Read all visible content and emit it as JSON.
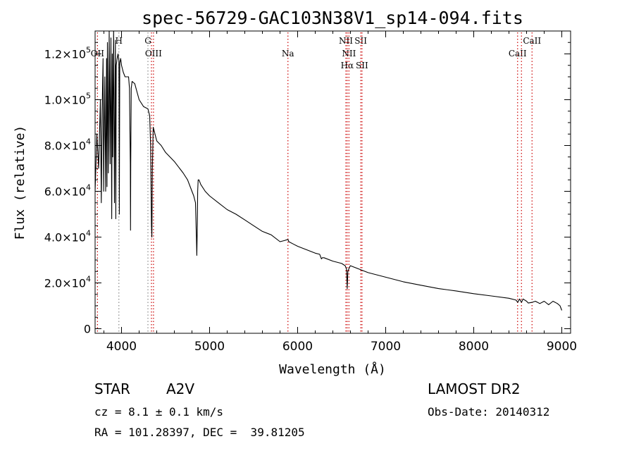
{
  "chart_data": {
    "type": "line",
    "title": "spec-56729-GAC103N38V1_sp14-094.fits",
    "xlabel": "Wavelength (Å)",
    "ylabel": "Flux (relative)",
    "xlim": [
      3700,
      9100
    ],
    "ylim": [
      -2000,
      130000
    ],
    "x_ticks": [
      {
        "value": 4000,
        "label": "4000"
      },
      {
        "value": 5000,
        "label": "5000"
      },
      {
        "value": 6000,
        "label": "6000"
      },
      {
        "value": 7000,
        "label": "7000"
      },
      {
        "value": 8000,
        "label": "8000"
      },
      {
        "value": 9000,
        "label": "9000"
      }
    ],
    "y_ticks": [
      {
        "value": 0,
        "mant": "0",
        "exp": ""
      },
      {
        "value": 20000,
        "mant": "2.0×10",
        "exp": "4"
      },
      {
        "value": 40000,
        "mant": "4.0×10",
        "exp": "4"
      },
      {
        "value": 60000,
        "mant": "6.0×10",
        "exp": "4"
      },
      {
        "value": 80000,
        "mant": "8.0×10",
        "exp": "4"
      },
      {
        "value": 100000,
        "mant": "1.0×10",
        "exp": "5"
      },
      {
        "value": 120000,
        "mant": "1.2×10",
        "exp": "5"
      }
    ],
    "grid": false,
    "series": [
      {
        "color": "#000000",
        "x": [
          3700,
          3720,
          3740,
          3760,
          3770,
          3780,
          3790,
          3797,
          3800,
          3810,
          3820,
          3830,
          3835,
          3840,
          3850,
          3860,
          3870,
          3880,
          3889,
          3895,
          3900,
          3910,
          3920,
          3930,
          3935,
          3940,
          3950,
          3960,
          3970,
          3975,
          3980,
          3990,
          4000,
          4020,
          4040,
          4060,
          4080,
          4090,
          4100,
          4102,
          4105,
          4110,
          4120,
          4150,
          4200,
          4250,
          4300,
          4320,
          4330,
          4340,
          4345,
          4350,
          4360,
          4380,
          4400,
          4450,
          4500,
          4600,
          4700,
          4750,
          4800,
          4820,
          4840,
          4850,
          4855,
          4861,
          4865,
          4870,
          4880,
          4900,
          4950,
          5000,
          5100,
          5200,
          5300,
          5400,
          5500,
          5600,
          5700,
          5800,
          5850,
          5890,
          5900,
          5950,
          6000,
          6100,
          6200,
          6250,
          6270,
          6280,
          6300,
          6400,
          6500,
          6540,
          6555,
          6563,
          6570,
          6590,
          6600,
          6700,
          6800,
          6900,
          7000,
          7200,
          7400,
          7600,
          7800,
          8000,
          8200,
          8400,
          8480,
          8500,
          8520,
          8542,
          8560,
          8600,
          8620,
          8662,
          8700,
          8750,
          8800,
          8850,
          8900,
          8950,
          8980,
          9000
        ],
        "y": [
          60000,
          85000,
          70000,
          100000,
          55000,
          95000,
          118000,
          60000,
          75000,
          110000,
          60000,
          118000,
          62000,
          125000,
          68000,
          130000,
          72000,
          127000,
          48000,
          120000,
          75000,
          131000,
          55000,
          126000,
          48000,
          115000,
          118000,
          120000,
          117000,
          50000,
          116000,
          118000,
          115000,
          112000,
          110000,
          110000,
          110000,
          105000,
          72000,
          43000,
          72000,
          105000,
          108000,
          107000,
          100000,
          97000,
          96000,
          93000,
          80000,
          45000,
          40000,
          70000,
          88000,
          85000,
          82000,
          80000,
          77000,
          73000,
          68000,
          65000,
          60000,
          58000,
          55000,
          40000,
          32000,
          45000,
          60000,
          65000,
          65000,
          63000,
          60000,
          58000,
          55000,
          52000,
          50000,
          47500,
          45000,
          42500,
          41000,
          38000,
          38500,
          39000,
          38000,
          37000,
          36000,
          34500,
          33000,
          32500,
          30500,
          31000,
          31000,
          29500,
          28500,
          27500,
          26000,
          17500,
          25000,
          27000,
          27500,
          26000,
          24500,
          23500,
          22500,
          20500,
          19000,
          17500,
          16500,
          15300,
          14300,
          13300,
          12500,
          11500,
          13000,
          11500,
          13000,
          12000,
          11200,
          11500,
          12000,
          11000,
          12000,
          10500,
          12000,
          11000,
          10000,
          8000
        ]
      }
    ],
    "lines": [
      {
        "x": 3727,
        "color": "#cc0000",
        "label": "OII",
        "row": 1
      },
      {
        "x": 3970,
        "color": "#888888",
        "label": "H",
        "row": 0
      },
      {
        "x": 4300,
        "color": "#888888",
        "label": "G",
        "row": 0
      },
      {
        "x": 4340,
        "color": "#cc0000",
        "label": "",
        "row": 0
      },
      {
        "x": 4363,
        "color": "#cc0000",
        "label": "OIII",
        "row": 1
      },
      {
        "x": 5890,
        "color": "#cc0000",
        "label": "Na",
        "row": 1
      },
      {
        "x": 6548,
        "color": "#cc0000",
        "label": "NII",
        "row": 0
      },
      {
        "x": 6563,
        "color": "#cc0000",
        "label": "Hα",
        "row": 2
      },
      {
        "x": 6583,
        "color": "#cc0000",
        "label": "NII",
        "row": 1
      },
      {
        "x": 6717,
        "color": "#cc0000",
        "label": "SII",
        "row": 0
      },
      {
        "x": 6731,
        "color": "#cc0000",
        "label": "SII",
        "row": 2
      },
      {
        "x": 8498,
        "color": "#cc0000",
        "label": "CaII",
        "row": 1
      },
      {
        "x": 8542,
        "color": "#cc0000",
        "label": "",
        "row": 1
      },
      {
        "x": 8662,
        "color": "#cc0000",
        "label": "CaII",
        "row": 0
      }
    ]
  },
  "info": {
    "class": "STAR",
    "subclass": "A2V",
    "survey": "LAMOST DR2",
    "cz": "cz = 8.1 ± 0.1 km/s",
    "obs_date": "Obs-Date: 20140312",
    "radec": "RA = 101.28397, DEC =  39.81205"
  }
}
